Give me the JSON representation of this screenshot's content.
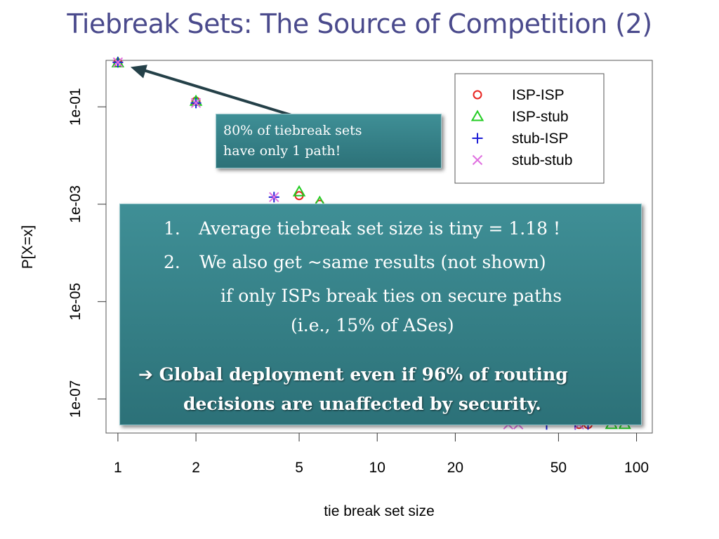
{
  "slide": {
    "title": "Tiebreak Sets: The Source of Competition (2)"
  },
  "callout_small": {
    "line1": "80% of tiebreak sets",
    "line2": "have only 1 path!"
  },
  "callout_big": {
    "item1_num": "1.",
    "item1_text": "Average tiebreak set size is tiny = 1.18 !",
    "item2_num": "2.",
    "item2_text": "We also get ~same results (not shown)",
    "item2_cont1": "if only ISPs break ties on secure paths",
    "item2_cont2": "(i.e., 15% of ASes)",
    "conclusion_arrow": "➔",
    "conclusion_line1": "Global deployment even if 96% of routing",
    "conclusion_line2": "decisions are unaffected by security."
  },
  "chart_data": {
    "type": "scatter",
    "xlabel": "tie break set size",
    "ylabel": "P[X=x]",
    "xscale": "log",
    "yscale": "log",
    "xlim": [
      0.9,
      115
    ],
    "ylim": [
      2e-08,
      0.9
    ],
    "x_ticks": [
      1,
      2,
      5,
      10,
      20,
      50,
      100
    ],
    "x_tick_labels": [
      "1",
      "2",
      "5",
      "10",
      "20",
      "50",
      "100"
    ],
    "y_ticks": [
      0.1,
      0.001,
      1e-05,
      1e-07
    ],
    "y_tick_labels": [
      "1e-01",
      "1e-03",
      "1e-05",
      "1e-07"
    ],
    "legend_position": "top-right",
    "series": [
      {
        "name": "ISP-ISP",
        "marker": "circle",
        "color": "#e8231f",
        "points": [
          [
            1,
            0.8
          ],
          [
            2,
            0.13
          ],
          [
            5,
            0.0015
          ],
          [
            6,
            0.001
          ],
          [
            60,
            3e-08
          ],
          [
            65,
            3e-08
          ]
        ]
      },
      {
        "name": "ISP-stub",
        "marker": "triangle",
        "color": "#22cc22",
        "points": [
          [
            1,
            0.8
          ],
          [
            2,
            0.13
          ],
          [
            5,
            0.0018
          ],
          [
            6,
            0.0011
          ],
          [
            80,
            3e-08
          ],
          [
            90,
            3e-08
          ]
        ]
      },
      {
        "name": "stub-ISP",
        "marker": "plus",
        "color": "#1f1fd6",
        "points": [
          [
            1,
            0.82
          ],
          [
            2,
            0.12
          ],
          [
            4,
            0.0014
          ],
          [
            45,
            3e-08
          ],
          [
            58,
            3e-08
          ],
          [
            65,
            3e-08
          ]
        ]
      },
      {
        "name": "stub-stub",
        "marker": "x",
        "color": "#e070e0",
        "points": [
          [
            1,
            0.82
          ],
          [
            2,
            0.12
          ],
          [
            4,
            0.0014
          ],
          [
            32,
            3e-08
          ],
          [
            35,
            3e-08
          ],
          [
            60,
            3e-08
          ]
        ]
      }
    ],
    "annotation_arrow": {
      "from": [
        6,
        0.045
      ],
      "to": [
        1,
        0.8
      ]
    }
  }
}
